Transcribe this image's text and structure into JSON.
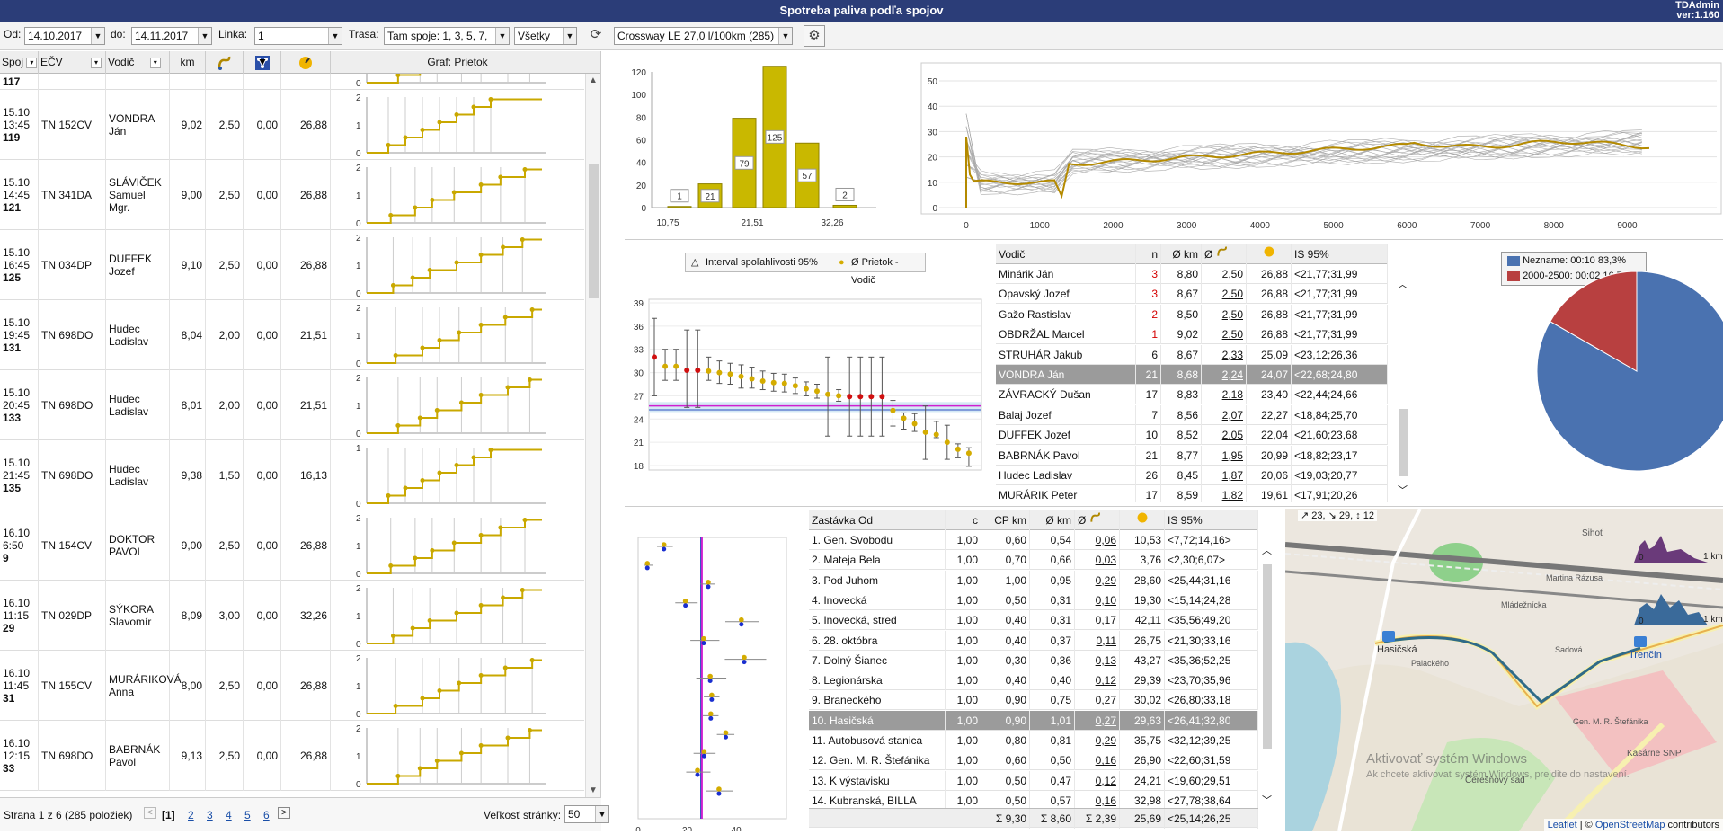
{
  "app": {
    "title": "Spotreba paliva podľa spojov",
    "user": "TDAdmin",
    "version": "ver:1.160"
  },
  "filters": {
    "od_label": "Od:",
    "od_value": "14.10.2017",
    "do_label": "do:",
    "do_value": "14.11.2017",
    "linka_label": "Linka:",
    "linka_value": "1",
    "trasa_label": "Trasa:",
    "trasa_value": "Tam spoje: 1, 3, 5, 7,",
    "vsetky_value": "Všetky",
    "vehicle_value": "Crossway LE 27,0 l/100km (285)"
  },
  "grid": {
    "headers": {
      "spoj": "Spoj",
      "ecv": "EČV",
      "vodic": "Vodič",
      "km": "km",
      "graf": "Graf: Prietok"
    },
    "first_partial": "117",
    "rows": [
      {
        "date": "15.10",
        "time": "13:45",
        "num": "119",
        "ecv": "TN 152CV",
        "vodic": "VONDRA Ján",
        "km": "9,02",
        "v1": "2,50",
        "v2": "0,00",
        "v3": "26,88",
        "ymax": 2
      },
      {
        "date": "15.10",
        "time": "14:45",
        "num": "121",
        "ecv": "TN 341DA",
        "vodic": "SLÁVIČEK Samuel Mgr.",
        "km": "9,00",
        "v1": "2,50",
        "v2": "0,00",
        "v3": "26,88",
        "ymax": 2
      },
      {
        "date": "15.10",
        "time": "16:45",
        "num": "125",
        "ecv": "TN 034DP",
        "vodic": "DUFFEK Jozef",
        "km": "9,10",
        "v1": "2,50",
        "v2": "0,00",
        "v3": "26,88",
        "ymax": 2
      },
      {
        "date": "15.10",
        "time": "19:45",
        "num": "131",
        "ecv": "TN 698DO",
        "vodic": "Hudec Ladislav",
        "km": "8,04",
        "v1": "2,00",
        "v2": "0,00",
        "v3": "21,51",
        "ymax": 2
      },
      {
        "date": "15.10",
        "time": "20:45",
        "num": "133",
        "ecv": "TN 698DO",
        "vodic": "Hudec Ladislav",
        "km": "8,01",
        "v1": "2,00",
        "v2": "0,00",
        "v3": "21,51",
        "ymax": 2
      },
      {
        "date": "15.10",
        "time": "21:45",
        "num": "135",
        "ecv": "TN 698DO",
        "vodic": "Hudec Ladislav",
        "km": "9,38",
        "v1": "1,50",
        "v2": "0,00",
        "v3": "16,13",
        "ymax": 1
      },
      {
        "date": "16.10",
        "time": "6:50",
        "num": "9",
        "ecv": "TN 154CV",
        "vodic": "DOKTOR PAVOL",
        "km": "9,00",
        "v1": "2,50",
        "v2": "0,00",
        "v3": "26,88",
        "ymax": 2
      },
      {
        "date": "16.10",
        "time": "11:15",
        "num": "29",
        "ecv": "TN 029DP",
        "vodic": "SÝKORA Slavomír",
        "km": "8,09",
        "v1": "3,00",
        "v2": "0,00",
        "v3": "32,26",
        "ymax": 2
      },
      {
        "date": "16.10",
        "time": "11:45",
        "num": "31",
        "ecv": "TN 155CV",
        "vodic": "MURÁRIKOVÁ Anna",
        "km": "8,00",
        "v1": "2,50",
        "v2": "0,00",
        "v3": "26,88",
        "ymax": 2
      },
      {
        "date": "16.10",
        "time": "12:15",
        "num": "33",
        "ecv": "TN 698DO",
        "vodic": "BABRNÁK Pavol",
        "km": "9,13",
        "v1": "2,50",
        "v2": "0,00",
        "v3": "26,88",
        "ymax": 2
      }
    ]
  },
  "pager": {
    "info": "Strana 1 z 6 (285 položiek)",
    "current": "[1]",
    "pages": [
      "2",
      "3",
      "4",
      "5",
      "6"
    ],
    "size_label": "Veľkosť stránky:",
    "size_value": "50"
  },
  "histogram": {
    "x_ticks": [
      "10,75",
      "21,51",
      "32,26"
    ],
    "y_ticks": [
      "0",
      "20",
      "40",
      "60",
      "80",
      "100",
      "120"
    ],
    "values": [
      1,
      21,
      79,
      125,
      57,
      2
    ],
    "labels": [
      "1",
      "21",
      "79",
      "125",
      "57",
      "2"
    ]
  },
  "line_chart": {
    "x_ticks": [
      "0",
      "1000",
      "2000",
      "3000",
      "4000",
      "5000",
      "6000",
      "7000",
      "8000",
      "9000"
    ],
    "y_ticks": [
      "0",
      "10",
      "20",
      "30",
      "40",
      "50"
    ]
  },
  "driver_chart": {
    "legend_interval": "Interval spoľahlivosti 95%",
    "legend_mean": "Ø Prietok - Vodič",
    "y_ticks": [
      "18",
      "21",
      "24",
      "27",
      "30",
      "33",
      "36",
      "39"
    ]
  },
  "driver_table": {
    "headers": {
      "vodic": "Vodič",
      "n": "n",
      "km": "Ø km",
      "is": "IS 95%"
    },
    "rows": [
      {
        "name": "Minárik Ján",
        "n": "3",
        "red": true,
        "km": "8,80",
        "p": "2,50",
        "v": "26,88",
        "is": "<21,77;31,99"
      },
      {
        "name": "Opavský Jozef",
        "n": "3",
        "red": true,
        "km": "8,67",
        "p": "2,50",
        "v": "26,88",
        "is": "<21,77;31,99"
      },
      {
        "name": "Gažo Rastislav",
        "n": "2",
        "red": true,
        "km": "8,50",
        "p": "2,50",
        "v": "26,88",
        "is": "<21,77;31,99"
      },
      {
        "name": "OBDRŽAL Marcel",
        "n": "1",
        "red": true,
        "km": "9,02",
        "p": "2,50",
        "v": "26,88",
        "is": "<21,77;31,99"
      },
      {
        "name": "STRUHÁR Jakub",
        "n": "6",
        "red": false,
        "km": "8,67",
        "p": "2,33",
        "v": "25,09",
        "is": "<23,12;26,36"
      },
      {
        "name": "VONDRA Ján",
        "n": "21",
        "red": false,
        "hl": true,
        "km": "8,68",
        "p": "2,24",
        "v": "24,07",
        "is": "<22,68;24,80"
      },
      {
        "name": "ZÁVRACKÝ Dušan",
        "n": "17",
        "red": false,
        "km": "8,83",
        "p": "2,18",
        "v": "23,40",
        "is": "<22,44;24,66"
      },
      {
        "name": "Balaj Jozef",
        "n": "7",
        "red": false,
        "km": "8,56",
        "p": "2,07",
        "v": "22,27",
        "is": "<18,84;25,70"
      },
      {
        "name": "DUFFEK Jozef",
        "n": "10",
        "red": false,
        "km": "8,52",
        "p": "2,05",
        "v": "22,04",
        "is": "<21,60;23,68"
      },
      {
        "name": "BABRNÁK Pavol",
        "n": "21",
        "red": false,
        "km": "8,77",
        "p": "1,95",
        "v": "20,99",
        "is": "<18,82;23,17"
      },
      {
        "name": "Hudec Ladislav",
        "n": "26",
        "red": false,
        "km": "8,45",
        "p": "1,87",
        "v": "20,06",
        "is": "<19,03;20,77"
      },
      {
        "name": "MURÁRIK Peter",
        "n": "17",
        "red": false,
        "km": "8,59",
        "p": "1,82",
        "v": "19,61",
        "is": "<17,91;20,26"
      }
    ]
  },
  "pie": {
    "legend": [
      "Nezname: 00:10 83,3%",
      "2000-2500: 00:02 16,7%"
    ],
    "values": [
      83.3,
      16.7
    ],
    "colors": [
      "#4a72b0",
      "#b84040"
    ]
  },
  "stop_chart": {
    "x_ticks": [
      "0",
      "20",
      "40"
    ]
  },
  "stop_table": {
    "headers": {
      "zastavka": "Zastávka Od",
      "c": "c",
      "cpkm": "CP km",
      "km": "Ø km",
      "is": "IS 95%"
    },
    "rows": [
      {
        "name": "1. Gen. Svobodu",
        "c": "1,00",
        "cp": "0,60",
        "km": "0,54",
        "p": "0,06",
        "v": "10,53",
        "is": "<7,72;14,16>"
      },
      {
        "name": "2. Mateja Bela",
        "c": "1,00",
        "cp": "0,70",
        "km": "0,66",
        "p": "0,03",
        "v": "3,76",
        "is": "<2,30;6,07>"
      },
      {
        "name": "3. Pod Juhom",
        "c": "1,00",
        "cp": "1,00",
        "km": "0,95",
        "p": "0,29",
        "v": "28,60",
        "is": "<25,44;31,16"
      },
      {
        "name": "4. Inovecká",
        "c": "1,00",
        "cp": "0,50",
        "km": "0,31",
        "p": "0,10",
        "v": "19,30",
        "is": "<15,14;24,28"
      },
      {
        "name": "5. Inovecká, stred",
        "c": "1,00",
        "cp": "0,40",
        "km": "0,31",
        "p": "0,17",
        "v": "42,11",
        "is": "<35,56;49,20"
      },
      {
        "name": "6. 28. októbra",
        "c": "1,00",
        "cp": "0,40",
        "km": "0,37",
        "p": "0,11",
        "v": "26,75",
        "is": "<21,30;33,16"
      },
      {
        "name": "7. Dolný Šianec",
        "c": "1,00",
        "cp": "0,30",
        "km": "0,36",
        "p": "0,13",
        "v": "43,27",
        "is": "<35,36;52,25"
      },
      {
        "name": "8. Legionárska",
        "c": "1,00",
        "cp": "0,40",
        "km": "0,40",
        "p": "0,12",
        "v": "29,39",
        "is": "<23,70;35,96"
      },
      {
        "name": "9. Braneckého",
        "c": "1,00",
        "cp": "0,90",
        "km": "0,75",
        "p": "0,27",
        "v": "30,02",
        "is": "<26,80;33,18"
      },
      {
        "name": "10. Hasičská",
        "c": "1,00",
        "hl": true,
        "cp": "0,90",
        "km": "1,01",
        "p": "0,27",
        "v": "29,63",
        "is": "<26,41;32,80"
      },
      {
        "name": "11. Autobusová stanica",
        "c": "1,00",
        "cp": "0,80",
        "km": "0,81",
        "p": "0,29",
        "v": "35,75",
        "is": "<32,12;39,25"
      },
      {
        "name": "12. Gen. M. R. Štefánika",
        "c": "1,00",
        "cp": "0,60",
        "km": "0,50",
        "p": "0,16",
        "v": "26,90",
        "is": "<22,60;31,59"
      },
      {
        "name": "13. K výstavisku",
        "c": "1,00",
        "cp": "0,50",
        "km": "0,47",
        "p": "0,12",
        "v": "24,21",
        "is": "<19,60;29,51"
      },
      {
        "name": "14. Kubranská, BILLA",
        "c": "1,00",
        "cp": "0,50",
        "km": "0,57",
        "p": "0,16",
        "v": "32,98",
        "is": "<27,78;38,64"
      }
    ],
    "totals": {
      "cp": "Σ 9,30",
      "km": "Σ 8,60",
      "p": "Σ 2,39",
      "v": "25,69",
      "is": "<25,14;26,25"
    }
  },
  "map": {
    "stats": "↗ 23, ↘ 29, ↕ 12",
    "attribution_leaflet": "Leaflet",
    "attribution_sep": " | © ",
    "attribution_osm": "OpenStreetMap",
    "attribution_tail": " contributors",
    "watermark1": "Aktivovať systém Windows",
    "watermark2": "Ak chcete aktivovať systém Windows, prejdite do nastavení.",
    "labels": [
      "Hasičská",
      "Trenčín",
      "Sihoť",
      "Kasárne SNP",
      "Čerešňový sad",
      "Sadová",
      "Palackého",
      "Mládežnícka",
      "Gen. M. R. Štefánika",
      "Martina Rázusa"
    ],
    "scale": "1 km",
    "elev_tick": "0"
  }
}
